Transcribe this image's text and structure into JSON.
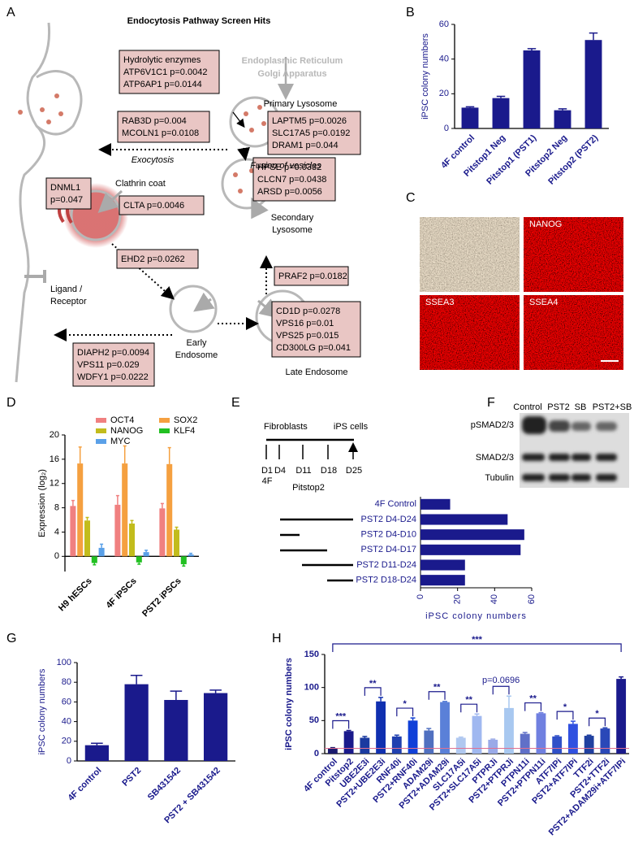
{
  "panel_labels": [
    "A",
    "B",
    "C",
    "D",
    "E",
    "F",
    "G",
    "H"
  ],
  "diagram": {
    "title": "Endocytosis Pathway Screen Hits",
    "boxes": [
      [
        "Hydrolytic enzymes",
        "ATP6V1C1 p=0.0042",
        "ATP6AP1 p=0.0144"
      ],
      [
        "RAB3D p=0.004",
        "MCOLN1 p=0.0108"
      ],
      [
        "LAPTM5 p=0.0026",
        "SLC17A5 p=0.0192",
        "DRAM1 p=0.044"
      ],
      [
        "DNML1",
        "p=0.047"
      ],
      [
        "CLTA p=0.0046"
      ],
      [
        "HPSE p=0.0332",
        "CLCN7 p=0.0438",
        "ARSD p=0.0056"
      ],
      [
        "EHD2 p=0.0262"
      ],
      [
        "PRAF2 p=0.0182"
      ],
      [
        "CD1D p=0.0278",
        "VPS16 p=0.01",
        "VPS25 p=0.015",
        "CD300LG p=0.041"
      ],
      [
        "DIAPH2 p=0.0094",
        "VPS11 p=0.029",
        "WDFY1 p=0.0222"
      ]
    ],
    "labels": [
      "Endoplasmic Reticulum",
      "Golgi Apparatus",
      "Primary Lysosome",
      "Exocytosis",
      "Fusion of vesicles",
      "Clathrin coat",
      "Secondary",
      "Lysosome",
      "Ligand /",
      "Receptor",
      "Early",
      "Endosome",
      "Late Endosome"
    ]
  },
  "images": {
    "labels": [
      "NANOG",
      "SSEA3",
      "SSEA4"
    ]
  },
  "timeline": {
    "start": "Fibroblasts",
    "end": "iPS cells",
    "days": [
      "D1",
      "D4",
      "D11",
      "D18",
      "D25"
    ],
    "factors": "4F",
    "treatment": "Pitstop2"
  },
  "blot": {
    "columns": [
      "Control",
      "PST2",
      "SB",
      "PST2+SB"
    ],
    "rows": [
      "pSMAD2/3",
      "SMAD2/3",
      "Tubulin"
    ]
  },
  "chart_data": [
    {
      "type": "bar",
      "y_label": "iPSC colony numbers",
      "categories": [
        "4F control",
        "Pitstop1 Neg",
        "Pitstop1 (PST1)",
        "Pitstop2 Neg",
        "Pitstop2 (PST2)"
      ],
      "values": [
        12,
        17.5,
        45,
        10.5,
        51
      ],
      "errors": [
        0.5,
        1,
        1,
        0.8,
        4
      ],
      "color": "#1a1a8c",
      "ylim": [
        0,
        60
      ],
      "yticks": [
        0,
        20,
        40,
        60
      ]
    },
    {
      "type": "grouped_bar",
      "y_label": "Expression (log₂)",
      "categories": [
        "H9 hESCs",
        "4F iPSCs",
        "PST2 iPSCs"
      ],
      "series": [
        {
          "name": "OCT4",
          "color": "#f08080",
          "values": [
            8.3,
            8.5,
            7.9
          ],
          "errors": [
            0.9,
            1.5,
            0.8
          ]
        },
        {
          "name": "SOX2",
          "color": "#f5a040",
          "values": [
            15.3,
            15.3,
            15.2
          ],
          "errors": [
            2.7,
            2.9,
            2.7
          ]
        },
        {
          "name": "NANOG",
          "color": "#c2bc1c",
          "values": [
            5.9,
            5.4,
            4.4
          ],
          "errors": [
            0.5,
            0.5,
            0.4
          ]
        },
        {
          "name": "KLF4",
          "color": "#22c022",
          "values": [
            -1.1,
            -1.0,
            -1.3
          ],
          "errors": [
            0.3,
            0.3,
            0.3
          ]
        },
        {
          "name": "MYC",
          "color": "#5aa0e8",
          "values": [
            1.4,
            0.7,
            0.3
          ],
          "errors": [
            0.6,
            0.3,
            0.2
          ]
        }
      ],
      "ylim": [
        -2.5,
        20
      ],
      "yticks": [
        0,
        4,
        8,
        12,
        16,
        20
      ]
    },
    {
      "type": "hbar",
      "x_label": "iPSC colony numbers",
      "categories": [
        "4F Control",
        "PST2 D4-D24",
        "PST2 D4-D10",
        "PST2 D4-D17",
        "PST2 D11-D24",
        "PST2 D18-D24"
      ],
      "values": [
        16,
        47,
        56,
        54,
        24,
        24
      ],
      "color": "#1a1a8c",
      "xlim": [
        0,
        60
      ],
      "xticks": [
        0,
        20,
        40,
        60
      ]
    },
    {
      "type": "bar",
      "y_label": "iPSC colony numbers",
      "categories": [
        "4F control",
        "PST2",
        "SB431542",
        "PST2 + SB431542"
      ],
      "values": [
        16,
        78,
        62,
        69
      ],
      "errors": [
        2,
        9,
        9,
        3
      ],
      "color": "#1a1a8c",
      "ylim": [
        0,
        100
      ],
      "yticks": [
        0,
        20,
        40,
        60,
        80,
        100
      ]
    },
    {
      "type": "bar",
      "y_label": "iPSC colony numbers",
      "categories": [
        "4F control",
        "Pitstop2",
        "UBE2E3i",
        "PST2+UBE2E3i",
        "RNF40i",
        "PST2+RNF40i",
        "ADAM29i",
        "PST2+ADAM29i",
        "SLC17A5i",
        "PST2+SLC17A5i",
        "PTPRJi",
        "PST2+PTPRJi",
        "PTPN11i",
        "PST2+PTPN11i",
        "ATF7IPi",
        "PST2+ATF7IPi",
        "TTF2i",
        "PST2+TTF2i",
        "PST2+ADAM29i+ATF7IPi"
      ],
      "values": [
        8,
        34,
        24,
        79,
        26,
        50,
        35,
        78,
        24,
        57,
        21,
        69,
        30,
        61,
        26,
        45,
        27,
        38,
        113
      ],
      "errors": [
        1,
        1,
        2,
        6,
        2,
        4,
        3,
        1,
        1,
        3,
        1,
        18,
        2,
        1,
        1,
        4,
        1,
        1,
        3
      ],
      "colors": [
        "#1a1a6e",
        "#1a1a8c",
        "#1a3aa0",
        "#1030b0",
        "#2040b0",
        "#1040d8",
        "#5070c0",
        "#5a80d8",
        "#b0c8f0",
        "#a0b8f0",
        "#9aaae8",
        "#a8c8f0",
        "#6070c8",
        "#7080e0",
        "#3050c8",
        "#3050e0",
        "#2040a0",
        "#2a48b8",
        "#1a1a8c"
      ],
      "reference_line": {
        "value": 8,
        "color": "#e07090"
      },
      "annotations": [
        "***",
        "**",
        "*",
        "**",
        "**",
        "p=0.0696",
        "**",
        "*",
        "*",
        "***"
      ],
      "ylim": [
        0,
        150
      ],
      "yticks": [
        0,
        50,
        100,
        150
      ]
    }
  ]
}
